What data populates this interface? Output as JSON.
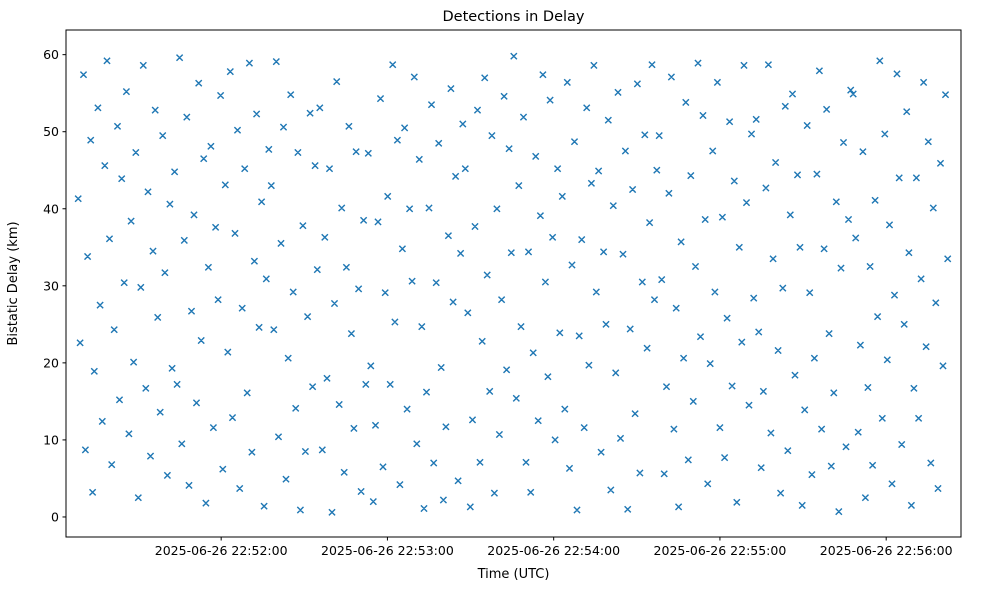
{
  "chart_data": {
    "type": "scatter",
    "title": "Detections in Delay",
    "xlabel": "Time (UTC)",
    "ylabel": "Bistatic Delay (km)",
    "marker": "x",
    "marker_color": "#1f77b4",
    "legend": "none",
    "grid": false,
    "x_axis": {
      "unit": "seconds after 2025-06-26 22:51:00 UTC",
      "lim": [
        4,
        327
      ],
      "ticks": [
        {
          "value": 60,
          "label": "2025-06-26 22:52:00"
        },
        {
          "value": 120,
          "label": "2025-06-26 22:53:00"
        },
        {
          "value": 180,
          "label": "2025-06-26 22:54:00"
        },
        {
          "value": 240,
          "label": "2025-06-26 22:55:00"
        },
        {
          "value": 300,
          "label": "2025-06-26 22:56:00"
        }
      ]
    },
    "y_axis": {
      "lim": [
        -2.6,
        63.2
      ],
      "ticks": [
        0,
        10,
        20,
        30,
        40,
        50,
        60
      ]
    },
    "points": [
      [
        8.4,
        41.3
      ],
      [
        9.1,
        22.6
      ],
      [
        10.3,
        57.4
      ],
      [
        11.0,
        8.7
      ],
      [
        11.8,
        33.8
      ],
      [
        12.9,
        48.9
      ],
      [
        13.6,
        3.2
      ],
      [
        14.2,
        18.9
      ],
      [
        15.5,
        53.1
      ],
      [
        16.3,
        27.5
      ],
      [
        17.1,
        12.4
      ],
      [
        18.0,
        45.6
      ],
      [
        18.8,
        59.2
      ],
      [
        19.7,
        36.1
      ],
      [
        20.5,
        6.8
      ],
      [
        21.4,
        24.3
      ],
      [
        22.6,
        50.7
      ],
      [
        23.3,
        15.2
      ],
      [
        24.1,
        43.9
      ],
      [
        25.0,
        30.4
      ],
      [
        25.8,
        55.2
      ],
      [
        26.7,
        10.8
      ],
      [
        27.5,
        38.4
      ],
      [
        28.4,
        20.1
      ],
      [
        29.2,
        47.3
      ],
      [
        30.1,
        2.5
      ],
      [
        31.0,
        29.8
      ],
      [
        31.9,
        58.6
      ],
      [
        32.8,
        16.7
      ],
      [
        33.6,
        42.2
      ],
      [
        34.5,
        7.9
      ],
      [
        35.4,
        34.5
      ],
      [
        36.2,
        52.8
      ],
      [
        37.1,
        25.9
      ],
      [
        38.0,
        13.6
      ],
      [
        38.9,
        49.5
      ],
      [
        39.7,
        31.7
      ],
      [
        40.6,
        5.4
      ],
      [
        41.5,
        40.6
      ],
      [
        42.3,
        19.3
      ],
      [
        43.2,
        44.8
      ],
      [
        44.1,
        17.2
      ],
      [
        45.0,
        59.6
      ],
      [
        45.8,
        9.5
      ],
      [
        46.7,
        35.9
      ],
      [
        47.6,
        51.9
      ],
      [
        48.4,
        4.1
      ],
      [
        49.3,
        26.7
      ],
      [
        50.2,
        39.2
      ],
      [
        51.1,
        14.8
      ],
      [
        51.9,
        56.3
      ],
      [
        52.8,
        22.9
      ],
      [
        53.7,
        46.5
      ],
      [
        54.5,
        1.8
      ],
      [
        55.4,
        32.4
      ],
      [
        56.3,
        48.1
      ],
      [
        57.2,
        11.6
      ],
      [
        58.0,
        37.6
      ],
      [
        58.9,
        28.2
      ],
      [
        59.8,
        54.7
      ],
      [
        60.6,
        6.2
      ],
      [
        61.5,
        43.1
      ],
      [
        62.4,
        21.4
      ],
      [
        63.3,
        57.8
      ],
      [
        64.1,
        12.9
      ],
      [
        65.0,
        36.8
      ],
      [
        65.9,
        50.2
      ],
      [
        66.7,
        3.7
      ],
      [
        67.6,
        27.1
      ],
      [
        68.5,
        45.2
      ],
      [
        69.4,
        16.1
      ],
      [
        70.2,
        58.9
      ],
      [
        71.1,
        8.4
      ],
      [
        72.0,
        33.2
      ],
      [
        72.8,
        52.3
      ],
      [
        73.7,
        24.6
      ],
      [
        74.6,
        40.9
      ],
      [
        75.5,
        1.4
      ],
      [
        76.3,
        30.9
      ],
      [
        77.2,
        47.7
      ],
      [
        78.1,
        43.0
      ],
      [
        79.0,
        24.3
      ],
      [
        79.9,
        59.1
      ],
      [
        80.7,
        10.4
      ],
      [
        81.6,
        35.5
      ],
      [
        82.5,
        50.6
      ],
      [
        83.4,
        4.9
      ],
      [
        84.2,
        20.6
      ],
      [
        85.1,
        54.8
      ],
      [
        86.0,
        29.2
      ],
      [
        86.9,
        14.1
      ],
      [
        87.7,
        47.3
      ],
      [
        88.6,
        0.9
      ],
      [
        89.5,
        37.8
      ],
      [
        90.4,
        8.5
      ],
      [
        91.2,
        26.0
      ],
      [
        92.1,
        52.4
      ],
      [
        93.0,
        16.9
      ],
      [
        93.9,
        45.6
      ],
      [
        94.7,
        32.1
      ],
      [
        95.6,
        53.1
      ],
      [
        96.5,
        8.7
      ],
      [
        97.4,
        36.3
      ],
      [
        98.2,
        18.0
      ],
      [
        99.1,
        45.2
      ],
      [
        100.0,
        0.6
      ],
      [
        100.9,
        27.7
      ],
      [
        101.7,
        56.5
      ],
      [
        102.6,
        14.6
      ],
      [
        103.5,
        40.1
      ],
      [
        104.4,
        5.8
      ],
      [
        105.2,
        32.4
      ],
      [
        106.1,
        50.7
      ],
      [
        107.0,
        23.8
      ],
      [
        107.9,
        11.5
      ],
      [
        108.7,
        47.4
      ],
      [
        109.6,
        29.6
      ],
      [
        110.5,
        3.3
      ],
      [
        111.4,
        38.5
      ],
      [
        112.2,
        17.2
      ],
      [
        113.1,
        47.2
      ],
      [
        114.0,
        19.6
      ],
      [
        114.9,
        2.0
      ],
      [
        115.7,
        11.9
      ],
      [
        116.6,
        38.3
      ],
      [
        117.5,
        54.3
      ],
      [
        118.4,
        6.5
      ],
      [
        119.2,
        29.1
      ],
      [
        120.1,
        41.6
      ],
      [
        121.0,
        17.2
      ],
      [
        121.9,
        58.7
      ],
      [
        122.7,
        25.3
      ],
      [
        123.6,
        48.9
      ],
      [
        124.5,
        4.2
      ],
      [
        125.4,
        34.8
      ],
      [
        126.2,
        50.5
      ],
      [
        127.1,
        14.0
      ],
      [
        128.0,
        40.0
      ],
      [
        128.9,
        30.6
      ],
      [
        129.7,
        57.1
      ],
      [
        130.6,
        9.5
      ],
      [
        131.5,
        46.4
      ],
      [
        132.4,
        24.7
      ],
      [
        133.2,
        1.1
      ],
      [
        134.1,
        16.2
      ],
      [
        135.0,
        40.1
      ],
      [
        135.9,
        53.5
      ],
      [
        136.7,
        7.0
      ],
      [
        137.6,
        30.4
      ],
      [
        138.5,
        48.5
      ],
      [
        139.4,
        19.4
      ],
      [
        140.2,
        2.2
      ],
      [
        141.1,
        11.7
      ],
      [
        142.0,
        36.5
      ],
      [
        142.9,
        55.6
      ],
      [
        143.7,
        27.9
      ],
      [
        144.6,
        44.2
      ],
      [
        145.5,
        4.7
      ],
      [
        146.4,
        34.2
      ],
      [
        147.2,
        51.0
      ],
      [
        148.1,
        45.2
      ],
      [
        149.0,
        26.5
      ],
      [
        149.9,
        1.3
      ],
      [
        150.7,
        12.6
      ],
      [
        151.6,
        37.7
      ],
      [
        152.5,
        52.8
      ],
      [
        153.4,
        7.1
      ],
      [
        154.2,
        22.8
      ],
      [
        155.1,
        57.0
      ],
      [
        156.0,
        31.4
      ],
      [
        156.9,
        16.3
      ],
      [
        157.7,
        49.5
      ],
      [
        158.6,
        3.1
      ],
      [
        159.5,
        40.0
      ],
      [
        160.4,
        10.7
      ],
      [
        161.2,
        28.2
      ],
      [
        162.1,
        54.6
      ],
      [
        163.0,
        19.1
      ],
      [
        163.9,
        47.8
      ],
      [
        164.7,
        34.3
      ],
      [
        165.6,
        59.8
      ],
      [
        166.5,
        15.4
      ],
      [
        167.4,
        43.0
      ],
      [
        168.2,
        24.7
      ],
      [
        169.1,
        51.9
      ],
      [
        170.0,
        7.1
      ],
      [
        170.9,
        34.4
      ],
      [
        171.7,
        3.2
      ],
      [
        172.6,
        21.3
      ],
      [
        173.5,
        46.8
      ],
      [
        174.4,
        12.5
      ],
      [
        175.2,
        39.1
      ],
      [
        176.1,
        57.4
      ],
      [
        177.0,
        30.5
      ],
      [
        177.9,
        18.2
      ],
      [
        178.7,
        54.1
      ],
      [
        179.6,
        36.3
      ],
      [
        180.5,
        10.0
      ],
      [
        181.4,
        45.2
      ],
      [
        182.2,
        23.9
      ],
      [
        183.1,
        41.6
      ],
      [
        184.0,
        14.0
      ],
      [
        184.9,
        56.4
      ],
      [
        185.7,
        6.3
      ],
      [
        186.6,
        32.7
      ],
      [
        187.5,
        48.7
      ],
      [
        188.4,
        0.9
      ],
      [
        189.2,
        23.5
      ],
      [
        190.1,
        36.0
      ],
      [
        191.0,
        11.6
      ],
      [
        191.9,
        53.1
      ],
      [
        192.7,
        19.7
      ],
      [
        193.6,
        43.3
      ],
      [
        194.5,
        58.6
      ],
      [
        195.4,
        29.2
      ],
      [
        196.2,
        44.9
      ],
      [
        197.1,
        8.4
      ],
      [
        198.0,
        34.4
      ],
      [
        198.9,
        25.0
      ],
      [
        199.7,
        51.5
      ],
      [
        200.6,
        3.5
      ],
      [
        201.5,
        40.4
      ],
      [
        202.4,
        18.7
      ],
      [
        203.2,
        55.1
      ],
      [
        204.1,
        10.2
      ],
      [
        205.0,
        34.1
      ],
      [
        205.9,
        47.5
      ],
      [
        206.7,
        1.0
      ],
      [
        207.6,
        24.4
      ],
      [
        208.5,
        42.5
      ],
      [
        209.4,
        13.4
      ],
      [
        210.2,
        56.2
      ],
      [
        211.1,
        5.7
      ],
      [
        212.0,
        30.5
      ],
      [
        212.9,
        49.6
      ],
      [
        213.7,
        21.9
      ],
      [
        214.6,
        38.2
      ],
      [
        215.5,
        58.7
      ],
      [
        216.4,
        28.2
      ],
      [
        217.2,
        45.0
      ],
      [
        218.1,
        49.5
      ],
      [
        219.0,
        30.8
      ],
      [
        219.9,
        5.6
      ],
      [
        220.7,
        16.9
      ],
      [
        221.6,
        42.0
      ],
      [
        222.5,
        57.1
      ],
      [
        223.4,
        11.4
      ],
      [
        224.2,
        27.1
      ],
      [
        225.1,
        1.3
      ],
      [
        226.0,
        35.7
      ],
      [
        226.9,
        20.6
      ],
      [
        227.7,
        53.8
      ],
      [
        228.6,
        7.4
      ],
      [
        229.5,
        44.3
      ],
      [
        230.4,
        15.0
      ],
      [
        231.2,
        32.5
      ],
      [
        232.1,
        58.9
      ],
      [
        233.0,
        23.4
      ],
      [
        233.9,
        52.1
      ],
      [
        234.7,
        38.6
      ],
      [
        235.6,
        4.3
      ],
      [
        236.5,
        19.9
      ],
      [
        237.4,
        47.5
      ],
      [
        238.2,
        29.2
      ],
      [
        239.1,
        56.4
      ],
      [
        240.0,
        11.6
      ],
      [
        240.9,
        38.9
      ],
      [
        241.7,
        7.7
      ],
      [
        242.6,
        25.8
      ],
      [
        243.5,
        51.3
      ],
      [
        244.4,
        17.0
      ],
      [
        245.2,
        43.6
      ],
      [
        246.1,
        1.9
      ],
      [
        247.0,
        35.0
      ],
      [
        247.9,
        22.7
      ],
      [
        248.7,
        58.6
      ],
      [
        249.6,
        40.8
      ],
      [
        250.5,
        14.5
      ],
      [
        251.4,
        49.7
      ],
      [
        252.2,
        28.4
      ],
      [
        253.1,
        51.6
      ],
      [
        254.0,
        24.0
      ],
      [
        254.9,
        6.4
      ],
      [
        255.7,
        16.3
      ],
      [
        256.6,
        42.7
      ],
      [
        257.5,
        58.7
      ],
      [
        258.4,
        10.9
      ],
      [
        259.2,
        33.5
      ],
      [
        260.1,
        46.0
      ],
      [
        261.0,
        21.6
      ],
      [
        261.9,
        3.1
      ],
      [
        262.7,
        29.7
      ],
      [
        263.6,
        53.3
      ],
      [
        264.5,
        8.6
      ],
      [
        265.4,
        39.2
      ],
      [
        266.2,
        54.9
      ],
      [
        267.1,
        18.4
      ],
      [
        268.0,
        44.4
      ],
      [
        268.9,
        35.0
      ],
      [
        269.7,
        1.5
      ],
      [
        270.6,
        13.9
      ],
      [
        271.5,
        50.8
      ],
      [
        272.4,
        29.1
      ],
      [
        273.2,
        5.5
      ],
      [
        274.1,
        20.6
      ],
      [
        275.0,
        44.5
      ],
      [
        275.9,
        57.9
      ],
      [
        276.7,
        11.4
      ],
      [
        277.6,
        34.8
      ],
      [
        278.5,
        52.9
      ],
      [
        279.4,
        23.8
      ],
      [
        280.2,
        6.6
      ],
      [
        281.1,
        16.1
      ],
      [
        282.0,
        40.9
      ],
      [
        282.9,
        0.7
      ],
      [
        283.7,
        32.3
      ],
      [
        284.6,
        48.6
      ],
      [
        285.5,
        9.1
      ],
      [
        286.4,
        38.6
      ],
      [
        287.2,
        55.4
      ],
      [
        288.1,
        54.9
      ],
      [
        289.0,
        36.2
      ],
      [
        289.9,
        11.0
      ],
      [
        290.7,
        22.3
      ],
      [
        291.6,
        47.4
      ],
      [
        292.5,
        2.5
      ],
      [
        293.4,
        16.8
      ],
      [
        294.2,
        32.5
      ],
      [
        295.1,
        6.7
      ],
      [
        296.0,
        41.1
      ],
      [
        296.9,
        26.0
      ],
      [
        297.7,
        59.2
      ],
      [
        298.6,
        12.8
      ],
      [
        299.5,
        49.7
      ],
      [
        300.4,
        20.4
      ],
      [
        301.2,
        37.9
      ],
      [
        302.1,
        4.3
      ],
      [
        303.0,
        28.8
      ],
      [
        303.9,
        57.5
      ],
      [
        304.7,
        44.0
      ],
      [
        305.6,
        9.4
      ],
      [
        306.5,
        25.0
      ],
      [
        307.4,
        52.6
      ],
      [
        308.2,
        34.3
      ],
      [
        309.1,
        1.5
      ],
      [
        310.0,
        16.7
      ],
      [
        310.9,
        44.0
      ],
      [
        311.7,
        12.8
      ],
      [
        312.6,
        30.9
      ],
      [
        313.5,
        56.4
      ],
      [
        314.4,
        22.1
      ],
      [
        315.2,
        48.7
      ],
      [
        316.1,
        7.0
      ],
      [
        317.0,
        40.1
      ],
      [
        317.9,
        27.8
      ],
      [
        318.7,
        3.7
      ],
      [
        319.6,
        45.9
      ],
      [
        320.5,
        19.6
      ],
      [
        321.4,
        54.8
      ],
      [
        322.2,
        33.5
      ]
    ]
  }
}
